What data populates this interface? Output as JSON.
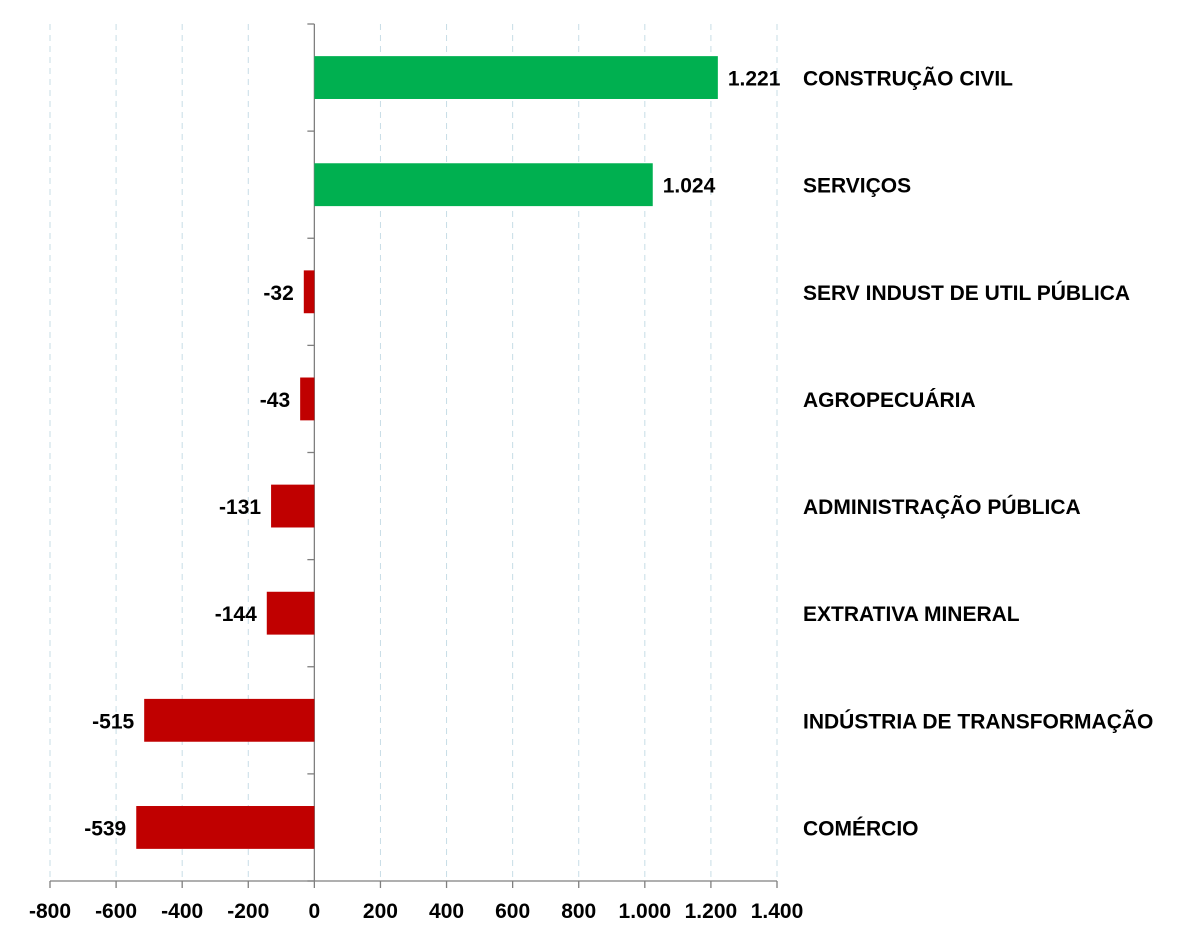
{
  "chart_data": {
    "type": "bar",
    "orientation": "horizontal",
    "title": "",
    "xlabel": "",
    "ylabel": "",
    "xlim": [
      -800,
      1400
    ],
    "x_tick_values": [
      -800,
      -600,
      -400,
      -200,
      0,
      200,
      400,
      600,
      800,
      1000,
      1200,
      1400
    ],
    "x_tick_labels": [
      "-800",
      "-600",
      "-400",
      "-200",
      "0",
      "200",
      "400",
      "600",
      "800",
      "1.000",
      "1.200",
      "1.400"
    ],
    "grid": "vertical dashed",
    "legend": "none",
    "categories": [
      "CONSTRUÇÃO CIVIL",
      "SERVIÇOS",
      "SERV INDUST DE UTIL PÚBLICA",
      "AGROPECUÁRIA",
      "ADMINISTRAÇÃO PÚBLICA",
      "EXTRATIVA MINERAL",
      "INDÚSTRIA DE TRANSFORMAÇÃO",
      "COMÉRCIO"
    ],
    "values": [
      1221,
      1024,
      -32,
      -43,
      -131,
      -144,
      -515,
      -539
    ],
    "value_labels": [
      "1.221",
      "1.024",
      "-32",
      "-43",
      "-131",
      "-144",
      "-515",
      "-539"
    ],
    "colors": {
      "positive": "#00b050",
      "negative": "#c00000",
      "grid": "#c7dde6",
      "axis": "#7f7f7f"
    }
  }
}
